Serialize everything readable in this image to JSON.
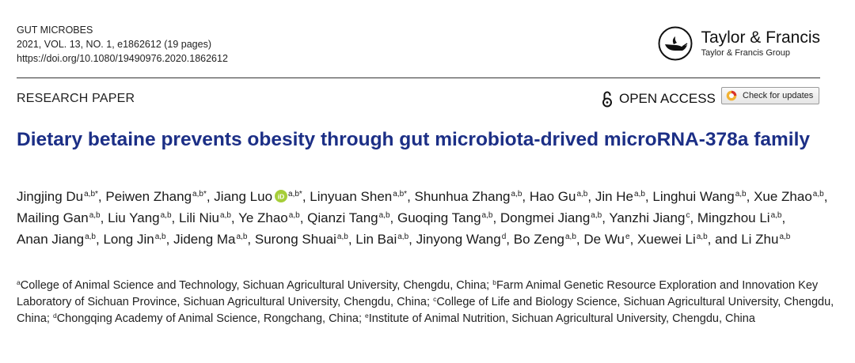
{
  "journal": {
    "name": "GUT MICROBES",
    "volume_line": "2021, VOL. 13, NO. 1, e1862612 (19 pages)",
    "doi": "https://doi.org/10.1080/19490976.2020.1862612"
  },
  "publisher": {
    "name": "Taylor & Francis",
    "group": "Taylor & Francis Group",
    "logo_icon": "lamp-logo-icon"
  },
  "paper_type": "RESEARCH PAPER",
  "open_access": {
    "label": "OPEN ACCESS",
    "icon": "open-lock-icon"
  },
  "check_updates": {
    "label": "Check for updates",
    "icon": "check-updates-icon"
  },
  "title": "Dietary betaine prevents obesity through gut microbiota-drived microRNA-378a family",
  "authors": [
    {
      "name": "Jingjing Du",
      "aff": "a,b*"
    },
    {
      "name": "Peiwen Zhang",
      "aff": "a,b*"
    },
    {
      "name": "Jiang Luo",
      "aff": "a,b*",
      "orcid": true
    },
    {
      "name": "Linyuan Shen",
      "aff": "a,b*"
    },
    {
      "name": "Shunhua Zhang",
      "aff": "a,b"
    },
    {
      "name": "Hao Gu",
      "aff": "a,b"
    },
    {
      "name": "Jin He",
      "aff": "a,b"
    },
    {
      "name": "Linghui Wang",
      "aff": "a,b"
    },
    {
      "name": "Xue Zhao",
      "aff": "a,b"
    },
    {
      "name": "Mailing Gan",
      "aff": "a,b"
    },
    {
      "name": "Liu Yang",
      "aff": "a,b"
    },
    {
      "name": "Lili Niu",
      "aff": "a,b"
    },
    {
      "name": "Ye Zhao",
      "aff": "a,b"
    },
    {
      "name": "Qianzi Tang",
      "aff": "a,b"
    },
    {
      "name": "Guoqing Tang",
      "aff": "a,b"
    },
    {
      "name": "Dongmei Jiang",
      "aff": "a,b"
    },
    {
      "name": "Yanzhi Jiang",
      "aff": "c"
    },
    {
      "name": "Mingzhou Li",
      "aff": "a,b"
    },
    {
      "name": "Anan Jiang",
      "aff": "a,b"
    },
    {
      "name": "Long Jin",
      "aff": "a,b"
    },
    {
      "name": "Jideng Ma",
      "aff": "a,b"
    },
    {
      "name": "Surong Shuai",
      "aff": "a,b"
    },
    {
      "name": "Lin Bai",
      "aff": "a,b"
    },
    {
      "name": "Jinyong Wang",
      "aff": "d"
    },
    {
      "name": "Bo Zeng",
      "aff": "a,b"
    },
    {
      "name": "De Wu",
      "aff": "e"
    },
    {
      "name": "Xuewei Li",
      "aff": "a,b"
    },
    {
      "name": "Li Zhu",
      "aff": "a,b"
    }
  ],
  "authors_conjunction": "and",
  "affiliations": [
    {
      "mark": "a",
      "text": "College of Animal Science and Technology, Sichuan Agricultural University, Chengdu, China"
    },
    {
      "mark": "b",
      "text": "Farm Animal Genetic Resource Exploration and Innovation Key Laboratory of Sichuan Province, Sichuan Agricultural University, Chengdu, China"
    },
    {
      "mark": "c",
      "text": "College of Life and Biology Science, Sichuan Agricultural University, Chengdu, China"
    },
    {
      "mark": "d",
      "text": "Chongqing Academy of Animal Science, Rongchang, China"
    },
    {
      "mark": "e",
      "text": "Institute of Animal Nutrition, Sichuan Agricultural University, Chengdu, China"
    }
  ],
  "colors": {
    "title": "#1c2f86",
    "orcid": "#a6ce39"
  }
}
